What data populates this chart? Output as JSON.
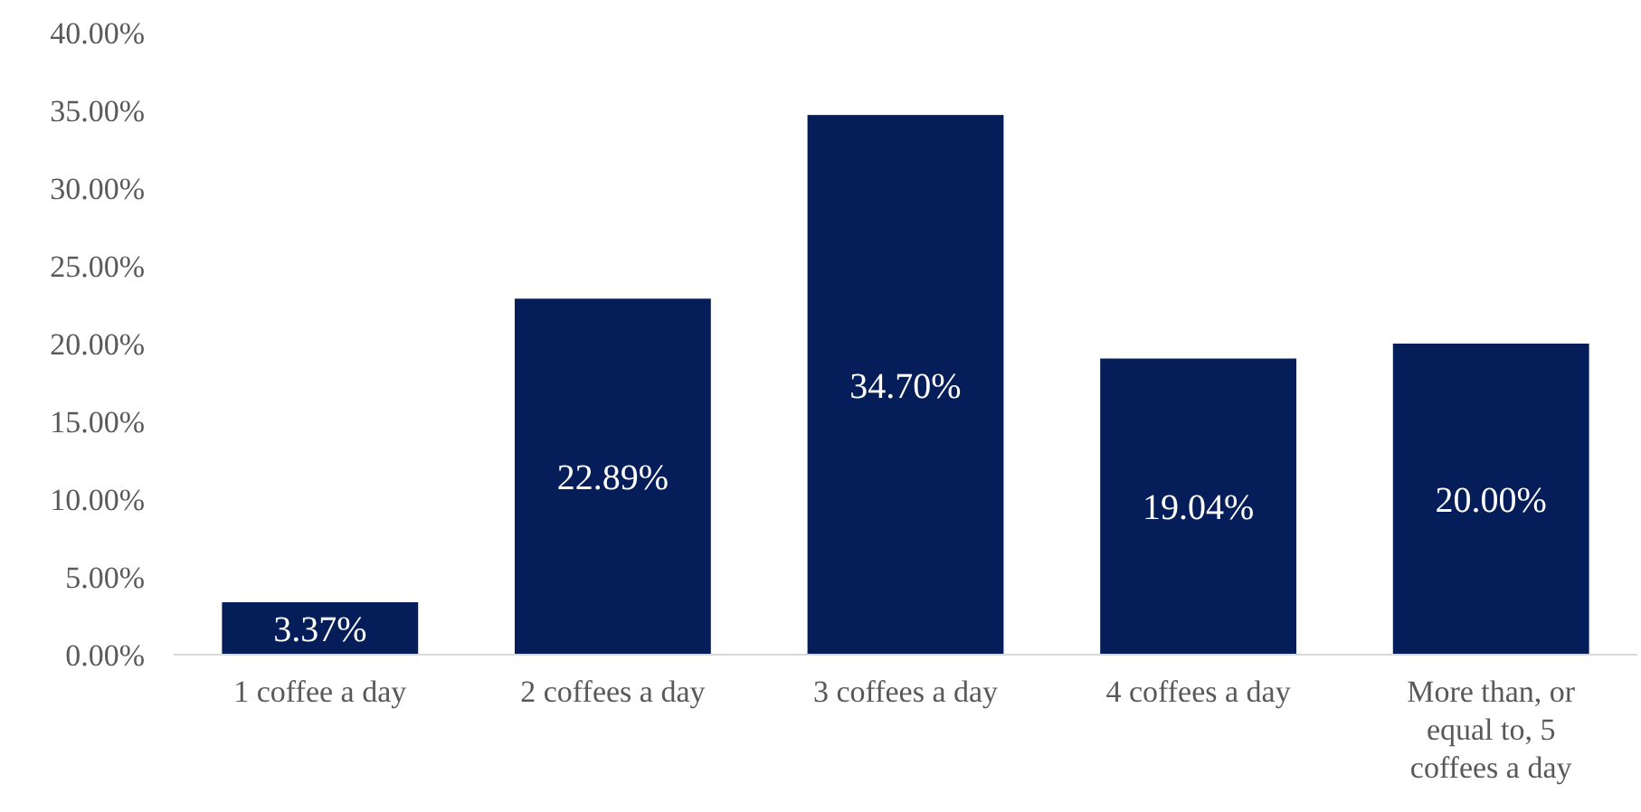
{
  "chart_data": {
    "type": "bar",
    "categories": [
      "1 coffee a day",
      "2 coffees a day",
      "3 coffees a day",
      "4 coffees a day",
      "More than, or equal to, 5 coffees a day"
    ],
    "values": [
      3.37,
      22.89,
      34.7,
      19.04,
      20.0
    ],
    "color": "#051e5a",
    "value_labels": [
      "3.37%",
      "22.89%",
      "34.70%",
      "19.04%",
      "20.00%"
    ],
    "ylim": [
      0,
      40
    ],
    "yticks": [
      {
        "value": 0,
        "label": "0.00%"
      },
      {
        "value": 5,
        "label": "5.00%"
      },
      {
        "value": 10,
        "label": "10.00%"
      },
      {
        "value": 15,
        "label": "15.00%"
      },
      {
        "value": 20,
        "label": "20.00%"
      },
      {
        "value": 25,
        "label": "25.00%"
      },
      {
        "value": 30,
        "label": "30.00%"
      },
      {
        "value": 35,
        "label": "35.00%"
      },
      {
        "value": 40,
        "label": "40.00%"
      }
    ],
    "grid": false
  }
}
